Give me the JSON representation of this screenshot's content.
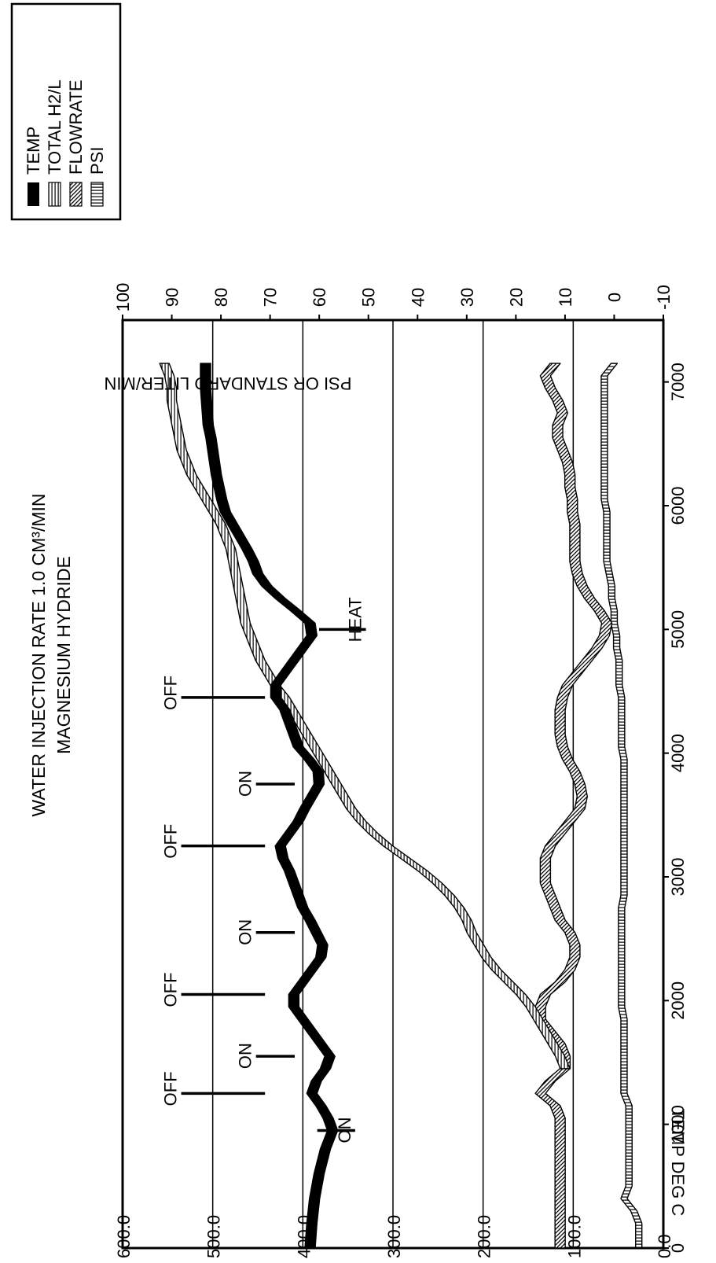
{
  "chart_data": {
    "type": "line",
    "title": "WATER INJECTION RATE 1.0 CM³/MIN",
    "subtitle": "MAGNESIUM HYDRIDE",
    "xlabel": "",
    "ylabel_left": "TEMP DEG C",
    "ylabel_right": "PSI OR STANDARD LITER/MIN",
    "xlim": [
      0,
      7500
    ],
    "ylim_left": [
      0,
      600
    ],
    "ylim_right": [
      -10,
      100
    ],
    "grid": true,
    "legend_position": "top-right",
    "x_ticks": [
      "0",
      "1000",
      "2000",
      "3000",
      "4000",
      "5000",
      "6000",
      "7000"
    ],
    "y_left_ticks": [
      "0.0",
      "100.0",
      "200.0",
      "300.0",
      "400.0",
      "500.0",
      "600.0"
    ],
    "y_right_ticks": [
      "-10",
      "0",
      "10",
      "20",
      "30",
      "40",
      "50",
      "60",
      "70",
      "80",
      "90",
      "100"
    ],
    "legend": [
      "TEMP",
      "TOTAL H2/L",
      "FLOWRATE",
      "PSI"
    ],
    "series": [
      {
        "name": "TEMP",
        "axis": "left",
        "x": [
          0,
          200,
          400,
          600,
          800,
          950,
          1050,
          1150,
          1250,
          1350,
          1450,
          1550,
          1650,
          1750,
          1850,
          1950,
          2050,
          2150,
          2250,
          2350,
          2450,
          2550,
          2650,
          2750,
          2850,
          2950,
          3050,
          3150,
          3250,
          3350,
          3450,
          3550,
          3650,
          3750,
          3850,
          3950,
          4050,
          4150,
          4250,
          4350,
          4450,
          4550,
          4650,
          4750,
          4850,
          4950,
          5050,
          5150,
          5250,
          5350,
          5450,
          5550,
          5650,
          5750,
          5850,
          5950,
          6050,
          6150,
          6250,
          6350,
          6450,
          6550,
          6650,
          6750,
          6850,
          6950,
          7050,
          7150
        ],
        "y": [
          392,
          390,
          387,
          382,
          375,
          367,
          372,
          380,
          390,
          385,
          375,
          370,
          380,
          390,
          400,
          410,
          410,
          400,
          390,
          380,
          378,
          385,
          392,
          400,
          405,
          410,
          415,
          422,
          425,
          415,
          405,
          398,
          390,
          382,
          383,
          393,
          405,
          410,
          415,
          420,
          430,
          430,
          420,
          410,
          400,
          390,
          392,
          408,
          425,
          440,
          450,
          455,
          462,
          470,
          478,
          486,
          490,
          493,
          496,
          498,
          500,
          502,
          505,
          506,
          507,
          508,
          508,
          508
        ]
      },
      {
        "name": "TOTAL H2/L",
        "axis": "right",
        "x": [
          1450,
          1550,
          1650,
          1750,
          1850,
          1950,
          2050,
          2150,
          2250,
          2350,
          2450,
          2550,
          2650,
          2750,
          2850,
          2950,
          3050,
          3150,
          3250,
          3350,
          3450,
          3550,
          3650,
          3750,
          3850,
          3950,
          4050,
          4150,
          4250,
          4350,
          4450,
          4550,
          4650,
          4750,
          4850,
          4950,
          5050,
          5150,
          5250,
          5350,
          5450,
          5550,
          5650,
          5750,
          5850,
          5950,
          6050,
          6150,
          6250,
          6350,
          6450,
          6550,
          6650,
          6750,
          6850,
          6950,
          7050,
          7150
        ],
        "y": [
          10,
          11,
          12.5,
          14,
          15.5,
          17,
          19,
          21.5,
          24,
          26,
          27.5,
          29,
          30,
          31.5,
          33.5,
          36,
          39,
          42.5,
          46,
          49,
          51.5,
          53.5,
          55,
          56.5,
          58,
          59.5,
          61,
          62.5,
          64,
          65.5,
          67,
          69,
          70.5,
          72,
          73,
          74,
          75,
          75.5,
          76,
          76.5,
          77,
          77.5,
          78,
          79,
          80,
          81.5,
          83,
          84.5,
          86,
          87,
          88,
          88.5,
          89,
          89.5,
          90,
          90,
          90.5,
          91.5
        ]
      },
      {
        "name": "FLOWRATE",
        "axis": "right",
        "x": [
          0,
          200,
          400,
          600,
          800,
          950,
          1050,
          1150,
          1250,
          1350,
          1450,
          1550,
          1650,
          1750,
          1850,
          1950,
          2050,
          2150,
          2250,
          2350,
          2450,
          2550,
          2650,
          2750,
          2850,
          2950,
          3050,
          3150,
          3250,
          3350,
          3450,
          3550,
          3650,
          3750,
          3850,
          3950,
          4050,
          4150,
          4250,
          4350,
          4450,
          4550,
          4650,
          4750,
          4850,
          4950,
          5050,
          5150,
          5250,
          5350,
          5450,
          5550,
          5650,
          5750,
          5850,
          5950,
          6050,
          6150,
          6250,
          6350,
          6450,
          6550,
          6650,
          6750,
          6850,
          6950,
          7050,
          7150
        ],
        "y": [
          11,
          11,
          11,
          11,
          11,
          11,
          11,
          12,
          15,
          13,
          10,
          10,
          11,
          13,
          15,
          15,
          14,
          11,
          9,
          8,
          8,
          9,
          11,
          12,
          13,
          14,
          14,
          14,
          13,
          11,
          9,
          7,
          6.5,
          7,
          8,
          9.5,
          10.5,
          11,
          11,
          11,
          10.5,
          9.5,
          7.5,
          5.5,
          3.5,
          2,
          1.5,
          3,
          5,
          6.5,
          7.5,
          8,
          8,
          8,
          8,
          8.5,
          8.5,
          9,
          9,
          9.5,
          10.5,
          11.5,
          11.5,
          10.5,
          11.5,
          13,
          14,
          12
        ]
      },
      {
        "name": "PSI",
        "axis": "right",
        "x": [
          0,
          200,
          300,
          400,
          500,
          600,
          700,
          800,
          950,
          1050,
          1150,
          1250,
          1350,
          1450,
          1550,
          1650,
          1750,
          1850,
          1950,
          2050,
          2150,
          2250,
          2350,
          2450,
          2550,
          2650,
          2750,
          2850,
          2950,
          3050,
          3150,
          3250,
          3350,
          3450,
          3550,
          3650,
          3750,
          3850,
          3950,
          4050,
          4150,
          4250,
          4350,
          4450,
          4550,
          4650,
          4750,
          4850,
          4950,
          5050,
          5150,
          5250,
          5350,
          5450,
          5550,
          5650,
          5750,
          5850,
          5950,
          6050,
          6150,
          6250,
          6350,
          6450,
          6550,
          6650,
          6750,
          6850,
          6950,
          7050,
          7150
        ],
        "y": [
          -5,
          -5,
          -4,
          -2,
          -3,
          -3,
          -3,
          -3,
          -3,
          -3,
          -3,
          -2,
          -2,
          -2,
          -2,
          -2,
          -2,
          -2,
          -1.5,
          -1.5,
          -1.5,
          -1.5,
          -1.5,
          -1.5,
          -1.5,
          -1.5,
          -1.5,
          -2,
          -2,
          -2,
          -2,
          -2,
          -2,
          -2,
          -2,
          -2,
          -2,
          -2,
          -2,
          -1.5,
          -1.5,
          -1.5,
          -1.5,
          -1.5,
          -1,
          -1,
          -1,
          -0.5,
          -0.5,
          0,
          0,
          0.5,
          0.5,
          1,
          1.5,
          1.5,
          1.5,
          1.5,
          1.5,
          2,
          2,
          2,
          2,
          2,
          2,
          2,
          2,
          2,
          2,
          2,
          0
        ]
      }
    ],
    "annotations": [
      {
        "label": "ON",
        "x": 950,
        "y_from": 384,
        "y_to": 342
      },
      {
        "label": "OFF",
        "x": 1250,
        "y_from": 442,
        "y_to": 535
      },
      {
        "label": "ON",
        "x": 1550,
        "y_from": 409,
        "y_to": 452
      },
      {
        "label": "OFF",
        "x": 2050,
        "y_from": 442,
        "y_to": 535
      },
      {
        "label": "ON",
        "x": 2550,
        "y_from": 409,
        "y_to": 452
      },
      {
        "label": "OFF",
        "x": 3250,
        "y_from": 442,
        "y_to": 535
      },
      {
        "label": "ON",
        "x": 3750,
        "y_from": 409,
        "y_to": 452
      },
      {
        "label": "OFF",
        "x": 4450,
        "y_from": 442,
        "y_to": 535
      },
      {
        "label": "HEAT",
        "x": 5000,
        "y_from": 382,
        "y_to": 330
      }
    ]
  }
}
